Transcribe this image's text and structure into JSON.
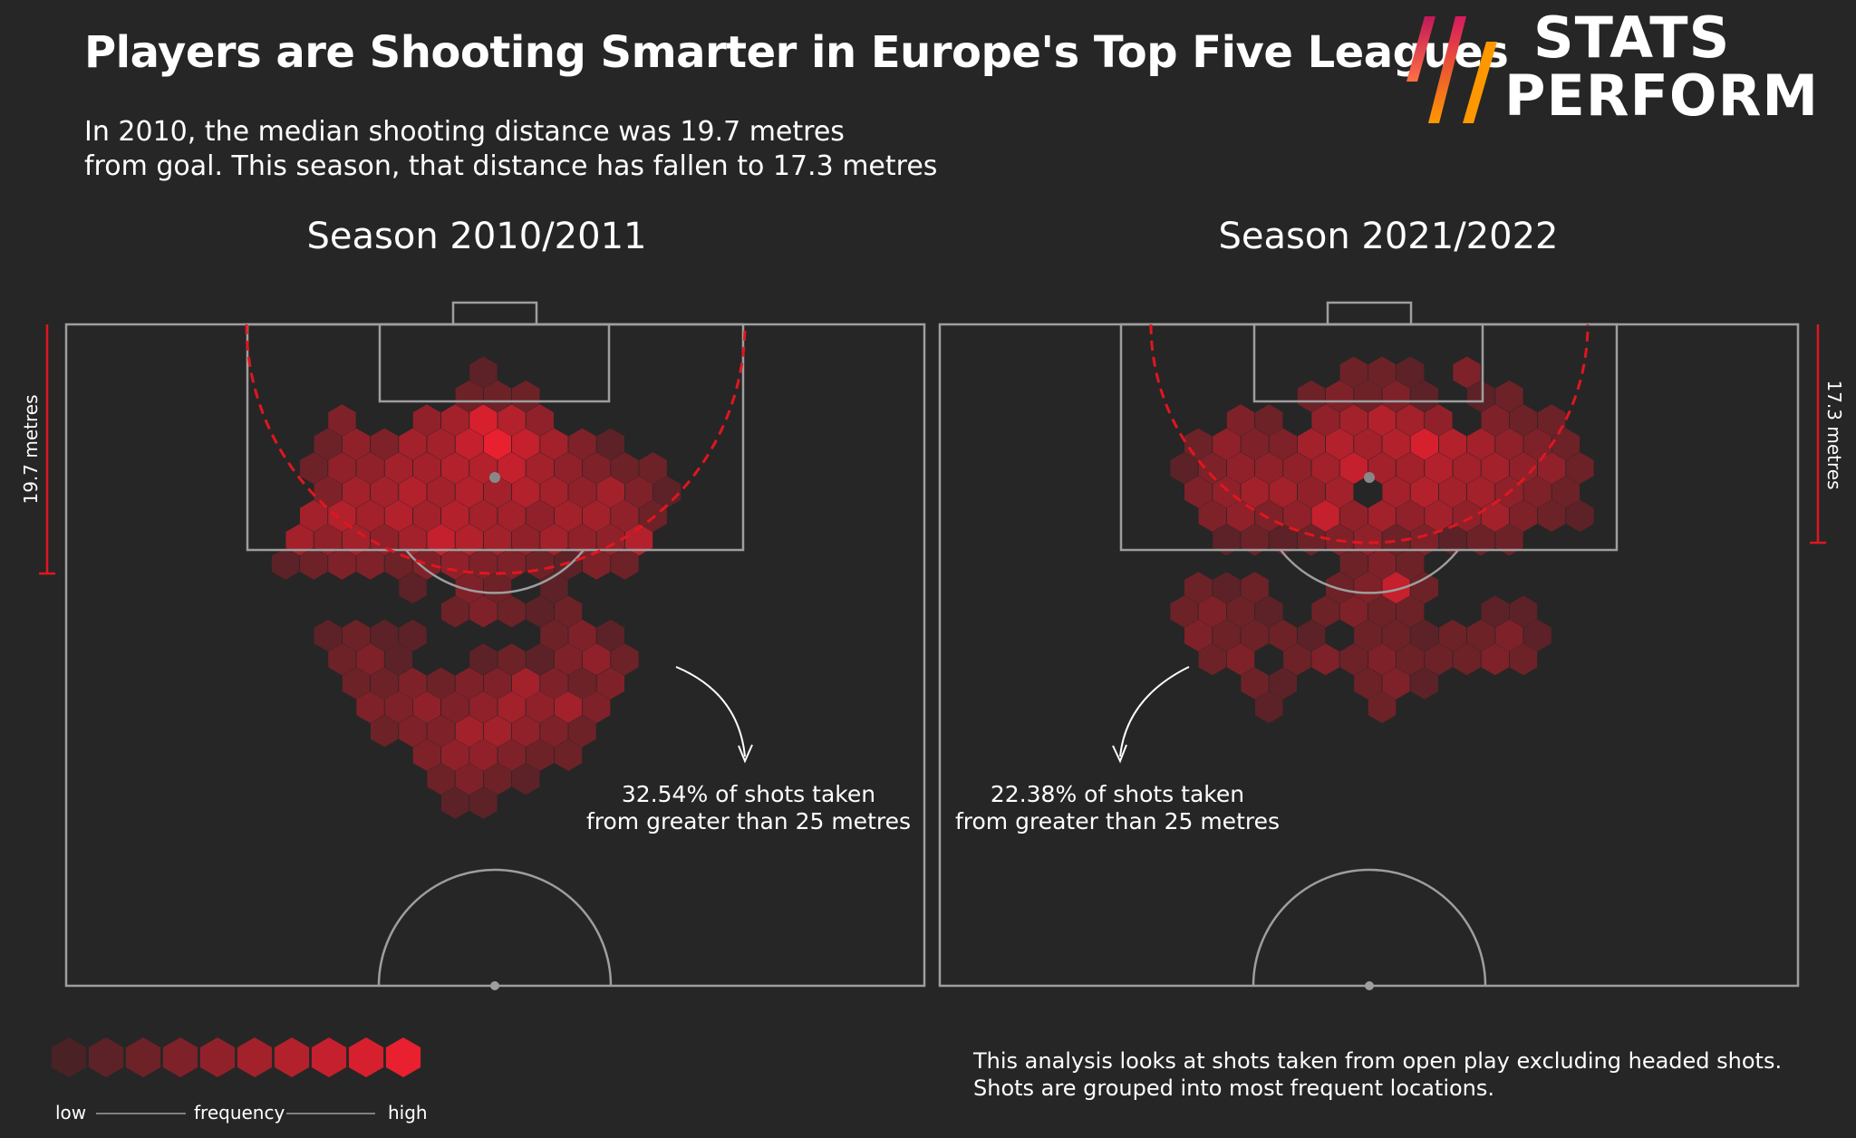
{
  "header": {
    "title": "Players are Shooting Smarter in Europe's Top Five Leagues",
    "subtitle_line1": "In 2010, the median shooting distance was 19.7 metres",
    "subtitle_line2": "from goal. This season, that distance has fallen to 17.3 metres"
  },
  "logo": {
    "line1": "STATS",
    "line2": "PERFORM",
    "colors": [
      "#c2185b",
      "#e64a19",
      "#ff9800"
    ]
  },
  "colors": {
    "background": "#262626",
    "pitch_line": "#9e9e9e",
    "arc": "#e0161f",
    "hex_low": "#4a2226",
    "hex_high": "#e8202f"
  },
  "chart_data": [
    {
      "type": "heatmap",
      "title": "Season 2010/2011",
      "median_distance_label": "19.7 metres",
      "median_distance_m": 19.7,
      "callout": {
        "line1": "32.54% of shots taken",
        "line2": "from greater than 25 metres"
      },
      "cells": [
        [
          14,
          0,
          2
        ],
        [
          13,
          1,
          3
        ],
        [
          15,
          1,
          3
        ],
        [
          17,
          1,
          3
        ],
        [
          4,
          2,
          4
        ],
        [
          10,
          2,
          5
        ],
        [
          12,
          2,
          6
        ],
        [
          14,
          2,
          9
        ],
        [
          16,
          2,
          7
        ],
        [
          18,
          2,
          5
        ],
        [
          3,
          3,
          3
        ],
        [
          5,
          3,
          5
        ],
        [
          7,
          3,
          4
        ],
        [
          9,
          3,
          6
        ],
        [
          11,
          3,
          6
        ],
        [
          13,
          3,
          8
        ],
        [
          15,
          3,
          10
        ],
        [
          17,
          3,
          8
        ],
        [
          19,
          3,
          6
        ],
        [
          21,
          3,
          4
        ],
        [
          23,
          3,
          2
        ],
        [
          2,
          4,
          3
        ],
        [
          4,
          4,
          5
        ],
        [
          6,
          4,
          5
        ],
        [
          8,
          4,
          6
        ],
        [
          10,
          4,
          6
        ],
        [
          12,
          4,
          7
        ],
        [
          14,
          4,
          7
        ],
        [
          16,
          4,
          8
        ],
        [
          18,
          4,
          6
        ],
        [
          20,
          4,
          5
        ],
        [
          22,
          4,
          4
        ],
        [
          24,
          4,
          3
        ],
        [
          26,
          4,
          3
        ],
        [
          3,
          5,
          4
        ],
        [
          5,
          5,
          6
        ],
        [
          7,
          5,
          6
        ],
        [
          9,
          5,
          7
        ],
        [
          11,
          5,
          6
        ],
        [
          13,
          5,
          7
        ],
        [
          15,
          5,
          6
        ],
        [
          17,
          5,
          7
        ],
        [
          19,
          5,
          6
        ],
        [
          21,
          5,
          5
        ],
        [
          23,
          5,
          6
        ],
        [
          25,
          5,
          4
        ],
        [
          27,
          5,
          2
        ],
        [
          2,
          6,
          6
        ],
        [
          4,
          6,
          7
        ],
        [
          6,
          6,
          6
        ],
        [
          8,
          6,
          7
        ],
        [
          10,
          6,
          6
        ],
        [
          12,
          6,
          7
        ],
        [
          14,
          6,
          6
        ],
        [
          16,
          6,
          6
        ],
        [
          18,
          6,
          5
        ],
        [
          20,
          6,
          6
        ],
        [
          22,
          6,
          6
        ],
        [
          24,
          6,
          5
        ],
        [
          26,
          6,
          3
        ],
        [
          1,
          7,
          6
        ],
        [
          3,
          7,
          5
        ],
        [
          5,
          7,
          6
        ],
        [
          7,
          7,
          5
        ],
        [
          9,
          7,
          6
        ],
        [
          11,
          7,
          8
        ],
        [
          13,
          7,
          7
        ],
        [
          15,
          7,
          6
        ],
        [
          17,
          7,
          5
        ],
        [
          19,
          7,
          6
        ],
        [
          21,
          7,
          5
        ],
        [
          23,
          7,
          5
        ],
        [
          25,
          7,
          7
        ],
        [
          0,
          8,
          2
        ],
        [
          2,
          8,
          3
        ],
        [
          4,
          8,
          4
        ],
        [
          6,
          8,
          4
        ],
        [
          8,
          8,
          3
        ],
        [
          10,
          8,
          4
        ],
        [
          12,
          8,
          5
        ],
        [
          14,
          8,
          4
        ],
        [
          16,
          8,
          4
        ],
        [
          18,
          8,
          3
        ],
        [
          20,
          8,
          2
        ],
        [
          22,
          8,
          4
        ],
        [
          24,
          8,
          3
        ],
        [
          9,
          9,
          2
        ],
        [
          13,
          9,
          4
        ],
        [
          15,
          9,
          3
        ],
        [
          19,
          9,
          2
        ],
        [
          12,
          10,
          3
        ],
        [
          14,
          10,
          4
        ],
        [
          16,
          10,
          3
        ],
        [
          18,
          10,
          2
        ],
        [
          20,
          10,
          3
        ],
        [
          3,
          11,
          2
        ],
        [
          5,
          11,
          3
        ],
        [
          7,
          11,
          2
        ],
        [
          9,
          11,
          2
        ],
        [
          19,
          11,
          3
        ],
        [
          21,
          11,
          4
        ],
        [
          23,
          11,
          2
        ],
        [
          4,
          12,
          3
        ],
        [
          6,
          12,
          4
        ],
        [
          8,
          12,
          2
        ],
        [
          14,
          12,
          2
        ],
        [
          16,
          12,
          3
        ],
        [
          18,
          12,
          2
        ],
        [
          20,
          12,
          4
        ],
        [
          22,
          12,
          5
        ],
        [
          24,
          12,
          3
        ],
        [
          5,
          13,
          3
        ],
        [
          7,
          13,
          3
        ],
        [
          9,
          13,
          4
        ],
        [
          11,
          13,
          3
        ],
        [
          13,
          13,
          4
        ],
        [
          15,
          13,
          4
        ],
        [
          17,
          13,
          6
        ],
        [
          19,
          13,
          4
        ],
        [
          21,
          13,
          3
        ],
        [
          23,
          13,
          4
        ],
        [
          6,
          14,
          4
        ],
        [
          8,
          14,
          4
        ],
        [
          10,
          14,
          5
        ],
        [
          12,
          14,
          4
        ],
        [
          14,
          14,
          5
        ],
        [
          16,
          14,
          6
        ],
        [
          18,
          14,
          5
        ],
        [
          20,
          14,
          6
        ],
        [
          22,
          14,
          4
        ],
        [
          7,
          15,
          3
        ],
        [
          9,
          15,
          4
        ],
        [
          11,
          15,
          4
        ],
        [
          13,
          15,
          6
        ],
        [
          15,
          15,
          6
        ],
        [
          17,
          15,
          5
        ],
        [
          19,
          15,
          4
        ],
        [
          21,
          15,
          3
        ],
        [
          10,
          16,
          4
        ],
        [
          12,
          16,
          5
        ],
        [
          14,
          16,
          5
        ],
        [
          16,
          16,
          4
        ],
        [
          18,
          16,
          3
        ],
        [
          20,
          16,
          3
        ],
        [
          11,
          17,
          3
        ],
        [
          13,
          17,
          4
        ],
        [
          15,
          17,
          3
        ],
        [
          17,
          17,
          2
        ],
        [
          12,
          18,
          2
        ],
        [
          14,
          18,
          2
        ]
      ]
    },
    {
      "type": "heatmap",
      "title": "Season 2021/2022",
      "median_distance_label": "17.3 metres",
      "median_distance_m": 17.3,
      "callout": {
        "line1": "22.38% of shots taken",
        "line2": "from greater than 25 metres"
      },
      "cells": [
        [
          13,
          0,
          3
        ],
        [
          15,
          0,
          3
        ],
        [
          17,
          0,
          2
        ],
        [
          21,
          0,
          4
        ],
        [
          10,
          1,
          3
        ],
        [
          12,
          1,
          4
        ],
        [
          14,
          1,
          3
        ],
        [
          16,
          1,
          4
        ],
        [
          18,
          1,
          2
        ],
        [
          22,
          1,
          2
        ],
        [
          24,
          1,
          3
        ],
        [
          5,
          2,
          4
        ],
        [
          7,
          2,
          3
        ],
        [
          11,
          2,
          5
        ],
        [
          13,
          2,
          6
        ],
        [
          15,
          2,
          7
        ],
        [
          17,
          2,
          6
        ],
        [
          19,
          2,
          5
        ],
        [
          23,
          2,
          4
        ],
        [
          25,
          2,
          3
        ],
        [
          27,
          2,
          3
        ],
        [
          2,
          3,
          3
        ],
        [
          4,
          3,
          5
        ],
        [
          6,
          3,
          4
        ],
        [
          8,
          3,
          4
        ],
        [
          10,
          3,
          6
        ],
        [
          12,
          3,
          7
        ],
        [
          14,
          3,
          6
        ],
        [
          16,
          3,
          7
        ],
        [
          18,
          3,
          9
        ],
        [
          20,
          3,
          7
        ],
        [
          22,
          3,
          6
        ],
        [
          24,
          3,
          5
        ],
        [
          26,
          3,
          4
        ],
        [
          28,
          3,
          3
        ],
        [
          1,
          4,
          2
        ],
        [
          3,
          4,
          4
        ],
        [
          5,
          4,
          5
        ],
        [
          7,
          4,
          5
        ],
        [
          9,
          4,
          5
        ],
        [
          11,
          4,
          6
        ],
        [
          13,
          4,
          8
        ],
        [
          15,
          4,
          6
        ],
        [
          17,
          4,
          6
        ],
        [
          19,
          4,
          7
        ],
        [
          21,
          4,
          6
        ],
        [
          23,
          4,
          6
        ],
        [
          25,
          4,
          5
        ],
        [
          27,
          4,
          5
        ],
        [
          29,
          4,
          3
        ],
        [
          2,
          5,
          4
        ],
        [
          4,
          5,
          5
        ],
        [
          6,
          5,
          6
        ],
        [
          8,
          5,
          6
        ],
        [
          10,
          5,
          5
        ],
        [
          12,
          5,
          6
        ],
        [
          16,
          5,
          6
        ],
        [
          18,
          5,
          7
        ],
        [
          20,
          5,
          6
        ],
        [
          22,
          5,
          6
        ],
        [
          24,
          5,
          5
        ],
        [
          26,
          5,
          4
        ],
        [
          28,
          5,
          3
        ],
        [
          3,
          6,
          4
        ],
        [
          5,
          6,
          5
        ],
        [
          7,
          6,
          4
        ],
        [
          9,
          6,
          5
        ],
        [
          11,
          6,
          8
        ],
        [
          13,
          6,
          5
        ],
        [
          15,
          6,
          6
        ],
        [
          17,
          6,
          5
        ],
        [
          19,
          6,
          6
        ],
        [
          21,
          6,
          5
        ],
        [
          23,
          6,
          6
        ],
        [
          25,
          6,
          4
        ],
        [
          27,
          6,
          3
        ],
        [
          29,
          6,
          2
        ],
        [
          4,
          7,
          2
        ],
        [
          6,
          7,
          3
        ],
        [
          8,
          7,
          2
        ],
        [
          10,
          7,
          3
        ],
        [
          12,
          7,
          4
        ],
        [
          14,
          7,
          5
        ],
        [
          16,
          7,
          3
        ],
        [
          18,
          7,
          4
        ],
        [
          20,
          7,
          2
        ],
        [
          22,
          7,
          3
        ],
        [
          24,
          7,
          3
        ],
        [
          13,
          8,
          3
        ],
        [
          15,
          8,
          4
        ],
        [
          17,
          8,
          3
        ],
        [
          2,
          9,
          3
        ],
        [
          4,
          9,
          2
        ],
        [
          6,
          9,
          3
        ],
        [
          12,
          9,
          3
        ],
        [
          14,
          9,
          4
        ],
        [
          16,
          9,
          8
        ],
        [
          18,
          9,
          3
        ],
        [
          1,
          10,
          3
        ],
        [
          3,
          10,
          4
        ],
        [
          5,
          10,
          3
        ],
        [
          7,
          10,
          2
        ],
        [
          11,
          10,
          3
        ],
        [
          13,
          10,
          4
        ],
        [
          15,
          10,
          3
        ],
        [
          17,
          10,
          3
        ],
        [
          23,
          10,
          2
        ],
        [
          25,
          10,
          2
        ],
        [
          2,
          11,
          4
        ],
        [
          4,
          11,
          3
        ],
        [
          6,
          11,
          3
        ],
        [
          8,
          11,
          3
        ],
        [
          10,
          11,
          2
        ],
        [
          14,
          11,
          3
        ],
        [
          16,
          11,
          3
        ],
        [
          18,
          11,
          2
        ],
        [
          20,
          11,
          3
        ],
        [
          22,
          11,
          3
        ],
        [
          24,
          11,
          4
        ],
        [
          26,
          11,
          2
        ],
        [
          3,
          12,
          3
        ],
        [
          5,
          12,
          4
        ],
        [
          9,
          12,
          3
        ],
        [
          11,
          12,
          4
        ],
        [
          13,
          12,
          3
        ],
        [
          15,
          12,
          4
        ],
        [
          17,
          12,
          3
        ],
        [
          19,
          12,
          3
        ],
        [
          21,
          12,
          3
        ],
        [
          23,
          12,
          4
        ],
        [
          25,
          12,
          3
        ],
        [
          6,
          13,
          3
        ],
        [
          8,
          13,
          2
        ],
        [
          14,
          13,
          3
        ],
        [
          16,
          13,
          4
        ],
        [
          18,
          13,
          2
        ],
        [
          7,
          14,
          2
        ],
        [
          15,
          14,
          3
        ]
      ]
    }
  ],
  "footnote": "This analysis looks at shots taken from open play excluding headed shots. Shots are grouped into most frequent locations.",
  "legend": {
    "low": "low",
    "mid": "frequency",
    "high": "high",
    "steps": 10
  }
}
